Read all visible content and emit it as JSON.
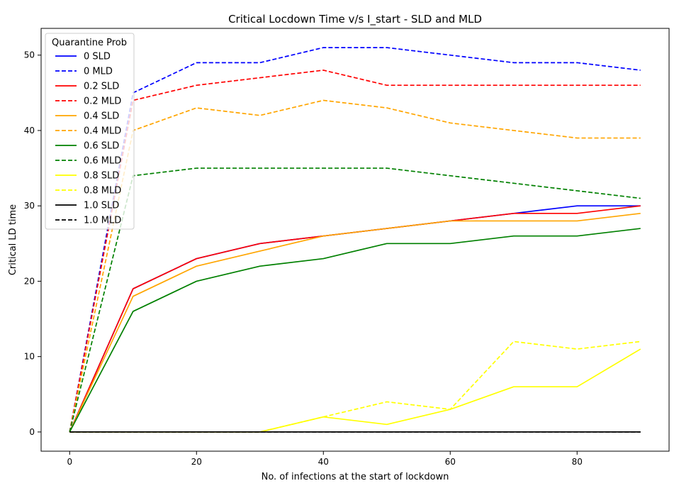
{
  "chart_data": {
    "type": "line",
    "title": "Critical Locdown Time v/s I_start - SLD and MLD",
    "xlabel": "No. of infections at the start of lockdown",
    "ylabel": "Critical LD time",
    "xlim": [
      -4.5,
      94.5
    ],
    "ylim": [
      -2.55,
      53.55
    ],
    "xticks": [
      0,
      20,
      40,
      60,
      80
    ],
    "yticks": [
      0,
      10,
      20,
      30,
      40,
      50
    ],
    "x": [
      0,
      10,
      20,
      30,
      40,
      50,
      60,
      70,
      80,
      90
    ],
    "legend": {
      "title": "Quarantine Prob",
      "position": "upper-left"
    },
    "series": [
      {
        "name": "0 SLD",
        "color": "#0000ff",
        "style": "solid",
        "values": [
          0,
          19,
          23,
          25,
          26,
          27,
          28,
          29,
          30,
          30
        ]
      },
      {
        "name": "0 MLD",
        "color": "#0000ff",
        "style": "dashed",
        "values": [
          0,
          45,
          49,
          49,
          51,
          51,
          50,
          49,
          49,
          48
        ]
      },
      {
        "name": "0.2 SLD",
        "color": "#ff0000",
        "style": "solid",
        "values": [
          0,
          19,
          23,
          25,
          26,
          27,
          28,
          29,
          29,
          30
        ]
      },
      {
        "name": "0.2 MLD",
        "color": "#ff0000",
        "style": "dashed",
        "values": [
          0,
          44,
          46,
          47,
          48,
          46,
          46,
          46,
          46,
          46
        ]
      },
      {
        "name": "0.4 SLD",
        "color": "#ffa500",
        "style": "solid",
        "values": [
          0,
          18,
          22,
          24,
          26,
          27,
          28,
          28,
          28,
          29
        ]
      },
      {
        "name": "0.4 MLD",
        "color": "#ffa500",
        "style": "dashed",
        "values": [
          0,
          40,
          43,
          42,
          44,
          43,
          41,
          40,
          39,
          39
        ]
      },
      {
        "name": "0.6 SLD",
        "color": "#008000",
        "style": "solid",
        "values": [
          0,
          16,
          20,
          22,
          23,
          25,
          25,
          26,
          26,
          27
        ]
      },
      {
        "name": "0.6 MLD",
        "color": "#008000",
        "style": "dashed",
        "values": [
          0,
          34,
          35,
          35,
          35,
          35,
          34,
          33,
          32,
          31
        ]
      },
      {
        "name": "0.8 SLD",
        "color": "#ffff00",
        "style": "solid",
        "values": [
          0,
          0,
          0,
          0,
          2,
          1,
          3,
          6,
          6,
          11
        ]
      },
      {
        "name": "0.8 MLD",
        "color": "#ffff00",
        "style": "dashed",
        "values": [
          0,
          0,
          0,
          0,
          2,
          4,
          3,
          12,
          11,
          12
        ]
      },
      {
        "name": "1.0 SLD",
        "color": "#000000",
        "style": "solid",
        "values": [
          0,
          0,
          0,
          0,
          0,
          0,
          0,
          0,
          0,
          0
        ]
      },
      {
        "name": "1.0 MLD",
        "color": "#000000",
        "style": "dashed",
        "values": [
          0,
          0,
          0,
          0,
          0,
          0,
          0,
          0,
          0,
          0
        ]
      }
    ]
  }
}
